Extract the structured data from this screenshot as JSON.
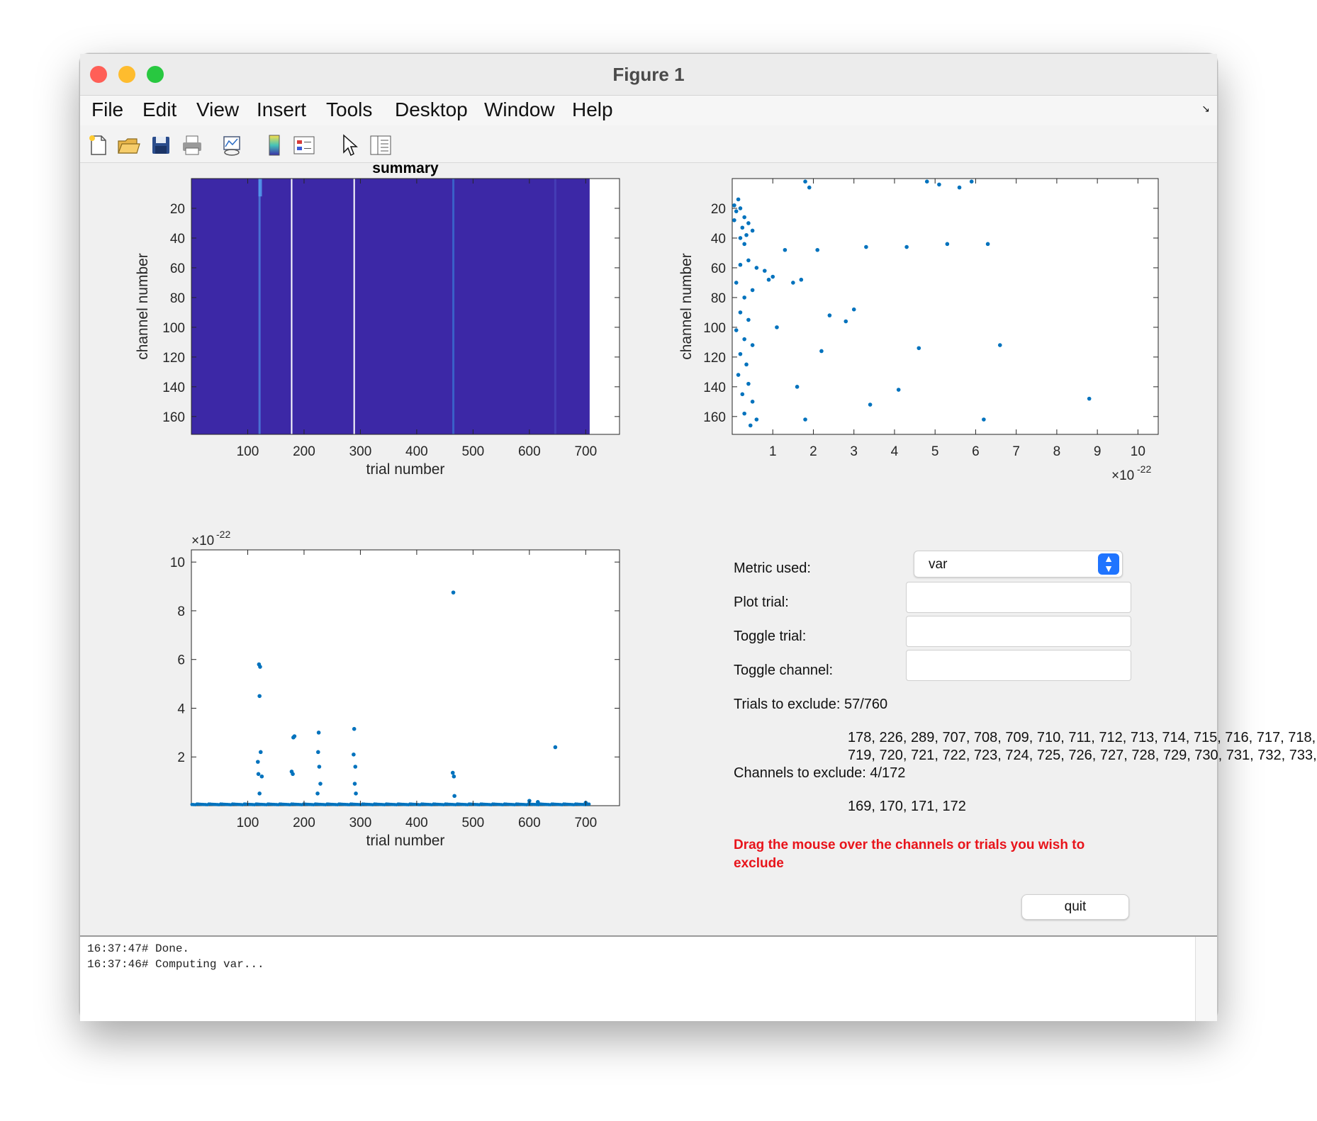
{
  "window": {
    "title": "Figure 1",
    "traffic_lights": {
      "close": "#ff5f57",
      "minimize": "#febc2e",
      "zoom": "#28c840"
    }
  },
  "menu": [
    "File",
    "Edit",
    "View",
    "Insert",
    "Tools",
    "Desktop",
    "Window",
    "Help"
  ],
  "toolbar_icons": [
    "new-figure-icon",
    "open-file-icon",
    "save-icon",
    "print-icon",
    "link-plot-icon",
    "colorbar-icon",
    "legend-icon",
    "edit-plot-icon",
    "property-inspector-icon"
  ],
  "axes_toolbar_icons": [
    "brush-icon",
    "data-tips-icon",
    "pan-icon",
    "zoom-in-icon",
    "zoom-out-icon",
    "home-icon"
  ],
  "colors": {
    "accent": "#0072bd",
    "image_fill": "#3c28a6",
    "warning": "#e8141b"
  },
  "charts": {
    "summary": {
      "title": "summary",
      "type": "heatmap",
      "xlabel": "trial number",
      "ylabel": "channel number",
      "xticks": [
        "100",
        "200",
        "300",
        "400",
        "500",
        "600",
        "700"
      ],
      "yticks": [
        "20",
        "40",
        "60",
        "80",
        "100",
        "120",
        "140",
        "160"
      ],
      "xlim": [
        0,
        760
      ],
      "ylim": [
        0,
        172
      ]
    },
    "channel_scatter": {
      "type": "scatter",
      "ylabel": "channel number",
      "xticks": [
        "1",
        "2",
        "3",
        "4",
        "5",
        "6",
        "7",
        "8",
        "9",
        "10"
      ],
      "yticks": [
        "20",
        "40",
        "60",
        "80",
        "100",
        "120",
        "140",
        "160"
      ],
      "exponent_base": "×10",
      "exponent_power": "-22"
    },
    "trial_scatter": {
      "type": "scatter",
      "xlabel": "trial number",
      "xticks": [
        "100",
        "200",
        "300",
        "400",
        "500",
        "600",
        "700"
      ],
      "yticks": [
        "2",
        "4",
        "6",
        "8",
        "10"
      ],
      "exponent_base": "×10",
      "exponent_power": "-22"
    }
  },
  "chart_data": [
    {
      "type": "heatmap",
      "title": "summary",
      "xlabel": "trial number",
      "ylabel": "channel number",
      "xlim": [
        0,
        760
      ],
      "ylim": [
        0,
        172
      ],
      "excluded_trials_shown_as_white_lines": [
        178,
        289
      ],
      "blank_trials_from": 707
    },
    {
      "type": "scatter",
      "xlabel": "",
      "ylabel": "channel number",
      "xlim": [
        0,
        10.5
      ],
      "ylim": [
        0,
        172
      ],
      "x_scale": "×10^-22",
      "points": [
        [
          0.05,
          18
        ],
        [
          0.1,
          22
        ],
        [
          0.05,
          28
        ],
        [
          0.15,
          14
        ],
        [
          0.2,
          20
        ],
        [
          0.3,
          26
        ],
        [
          0.25,
          33
        ],
        [
          0.35,
          38
        ],
        [
          0.3,
          44
        ],
        [
          0.2,
          40
        ],
        [
          0.4,
          30
        ],
        [
          0.5,
          35
        ],
        [
          0.4,
          55
        ],
        [
          0.6,
          60
        ],
        [
          0.2,
          58
        ],
        [
          0.1,
          70
        ],
        [
          0.3,
          80
        ],
        [
          0.5,
          75
        ],
        [
          0.2,
          90
        ],
        [
          0.4,
          95
        ],
        [
          0.1,
          102
        ],
        [
          0.3,
          108
        ],
        [
          0.5,
          112
        ],
        [
          0.2,
          118
        ],
        [
          0.35,
          125
        ],
        [
          0.15,
          132
        ],
        [
          0.4,
          138
        ],
        [
          0.25,
          145
        ],
        [
          0.5,
          150
        ],
        [
          0.3,
          158
        ],
        [
          0.6,
          162
        ],
        [
          0.45,
          166
        ],
        [
          0.8,
          62
        ],
        [
          0.9,
          68
        ],
        [
          1.0,
          66
        ],
        [
          1.1,
          100
        ],
        [
          1.3,
          48
        ],
        [
          1.5,
          70
        ],
        [
          1.7,
          68
        ],
        [
          1.9,
          6
        ],
        [
          2.1,
          48
        ],
        [
          2.2,
          116
        ],
        [
          2.4,
          92
        ],
        [
          2.8,
          96
        ],
        [
          3.0,
          88
        ],
        [
          3.3,
          46
        ],
        [
          3.4,
          152
        ],
        [
          4.1,
          142
        ],
        [
          4.3,
          46
        ],
        [
          4.6,
          114
        ],
        [
          4.8,
          2
        ],
        [
          5.1,
          4
        ],
        [
          5.3,
          44
        ],
        [
          5.6,
          6
        ],
        [
          5.9,
          2
        ],
        [
          6.3,
          44
        ],
        [
          6.2,
          162
        ],
        [
          6.6,
          112
        ],
        [
          8.8,
          148
        ],
        [
          1.8,
          2
        ],
        [
          1.6,
          140
        ],
        [
          1.8,
          162
        ]
      ]
    },
    {
      "type": "scatter",
      "xlabel": "trial number",
      "ylabel": "",
      "xlim": [
        0,
        760
      ],
      "ylim": [
        0,
        10.5
      ],
      "y_scale": "×10^-22",
      "points": [
        [
          120,
          5.8
        ],
        [
          122,
          5.7
        ],
        [
          121,
          4.5
        ],
        [
          123,
          2.2
        ],
        [
          118,
          1.8
        ],
        [
          119,
          1.3
        ],
        [
          125,
          1.2
        ],
        [
          121,
          0.5
        ],
        [
          178,
          1.4
        ],
        [
          180,
          1.3
        ],
        [
          181,
          2.8
        ],
        [
          183,
          2.85
        ],
        [
          226,
          3.0
        ],
        [
          225,
          2.2
        ],
        [
          227,
          1.6
        ],
        [
          229,
          0.9
        ],
        [
          224,
          0.5
        ],
        [
          289,
          3.15
        ],
        [
          288,
          2.1
        ],
        [
          291,
          1.6
        ],
        [
          290,
          0.9
        ],
        [
          292,
          0.5
        ],
        [
          465,
          8.75
        ],
        [
          464,
          1.35
        ],
        [
          466,
          1.2
        ],
        [
          467,
          0.4
        ],
        [
          646,
          2.4
        ],
        [
          600,
          0.2
        ],
        [
          615,
          0.15
        ],
        [
          700,
          0.12
        ]
      ]
    }
  ],
  "controls": {
    "metric_label": "Metric used:",
    "metric_value": "var",
    "plot_trial_label": "Plot trial:",
    "toggle_trial_label": "Toggle trial:",
    "toggle_channel_label": "Toggle channel:",
    "trials_exclude_label": "Trials to exclude: 57/760",
    "trials_list_line1": "178, 226, 289, 707, 708, 709, 710, 711, 712, 713, 714, 715, 716, 717, 718,",
    "trials_list_line2": "719, 720, 721, 722, 723, 724, 725, 726, 727, 728, 729, 730, 731, 732, 733,",
    "channels_exclude_label": "Channels to exclude: 4/172",
    "channels_list": "169, 170, 171, 172",
    "instruction": "Drag the mouse over the channels or trials you wish to exclude",
    "quit_label": "quit"
  },
  "log": {
    "line1": "16:37:47# Done.",
    "line2": "16:37:46# Computing var..."
  }
}
